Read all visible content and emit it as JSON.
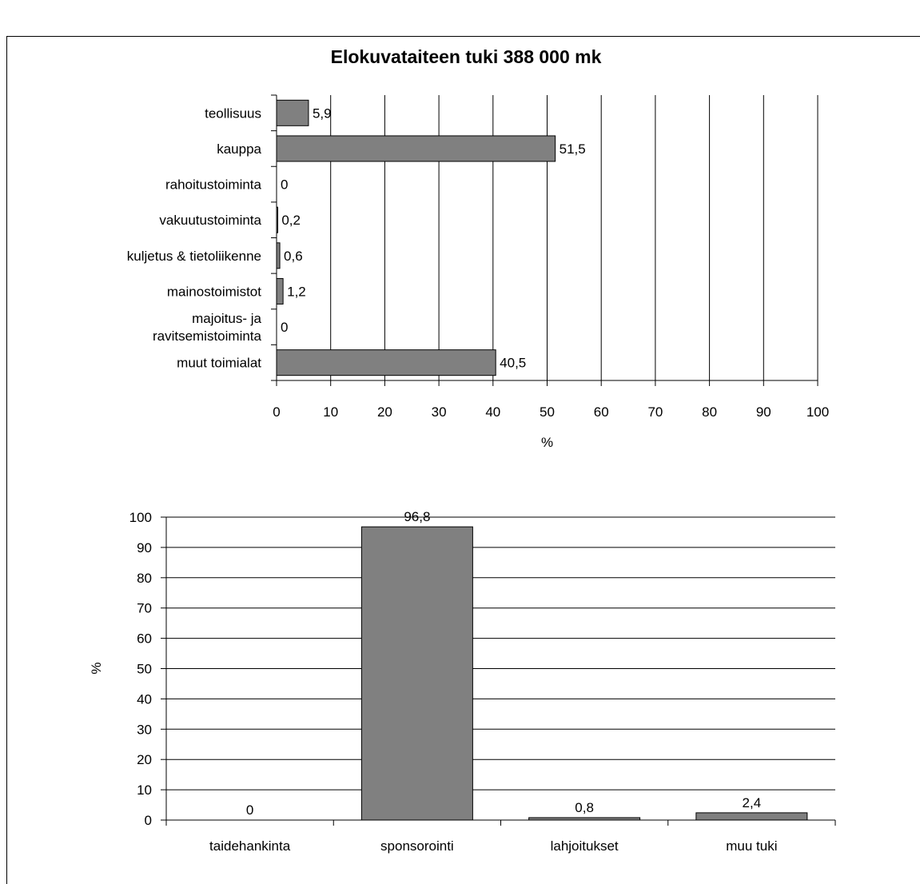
{
  "chart_data": [
    {
      "type": "bar",
      "orientation": "horizontal",
      "title": "Elokuvataiteen tuki 388 000 mk",
      "xlabel": "%",
      "ylabel": "",
      "xlim": [
        0,
        100
      ],
      "xticks": [
        0,
        10,
        20,
        30,
        40,
        50,
        60,
        70,
        80,
        90,
        100
      ],
      "grid": "vertical",
      "categories": [
        "teollisuus",
        "kauppa",
        "rahoitustoiminta",
        "vakuutustoiminta",
        "kuljetus & tietoliikenne",
        "mainostoimistot",
        "majoitus- ja ravitsemistoiminta",
        "muut toimialat"
      ],
      "category_lines": [
        [
          "teollisuus"
        ],
        [
          "kauppa"
        ],
        [
          "rahoitustoiminta"
        ],
        [
          "vakuutustoiminta"
        ],
        [
          "kuljetus & tietoliikenne"
        ],
        [
          "mainostoimistot"
        ],
        [
          "majoitus- ja",
          "ravitsemistoiminta"
        ],
        [
          "muut toimialat"
        ]
      ],
      "values": [
        5.9,
        51.5,
        0,
        0.2,
        0.6,
        1.2,
        0,
        40.5
      ],
      "data_labels": [
        "5,9",
        "51,5",
        "0",
        "0,2",
        "0,6",
        "1,2",
        "0",
        "40,5"
      ],
      "bar_color": "#808080"
    },
    {
      "type": "bar",
      "orientation": "vertical",
      "title": "",
      "xlabel": "",
      "ylabel": "%",
      "ylim": [
        0,
        100
      ],
      "yticks": [
        0,
        10,
        20,
        30,
        40,
        50,
        60,
        70,
        80,
        90,
        100
      ],
      "grid": "horizontal",
      "categories": [
        "taidehankinta",
        "sponsorointi",
        "lahjoitukset",
        "muu tuki"
      ],
      "values": [
        0,
        96.8,
        0.8,
        2.4
      ],
      "data_labels": [
        "0",
        "96,8",
        "0,8",
        "2,4"
      ],
      "bar_color": "#808080"
    }
  ]
}
